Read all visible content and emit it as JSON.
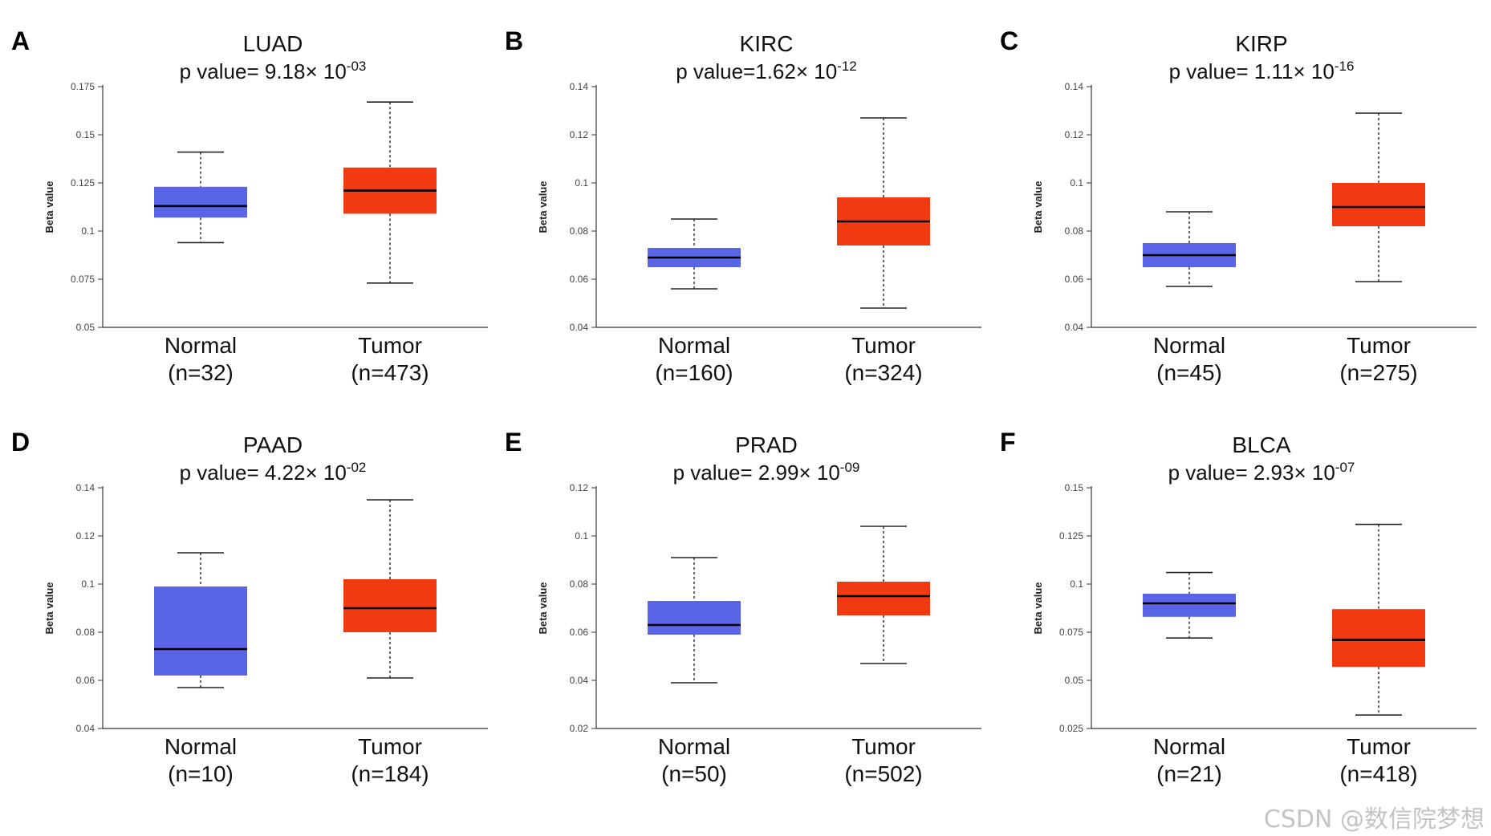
{
  "watermark": "CSDN @数信院梦想",
  "colors": {
    "normal": "#5a64e6",
    "tumor": "#f23a12",
    "axis": "#333333",
    "median": "#000000"
  },
  "chart_data": [
    {
      "panel": "A",
      "type": "box",
      "title": "LUAD",
      "p_value_prefix": "p value= 9.18× 10",
      "p_value_exponent": "-03",
      "ylabel": "Beta value",
      "ylim": [
        0.05,
        0.175
      ],
      "yticks": [
        "0.05",
        "0.075",
        "0.1",
        "0.125",
        "0.15",
        "0.175"
      ],
      "ytick_values": [
        0.05,
        0.075,
        0.1,
        0.125,
        0.15,
        0.175
      ],
      "groups": [
        {
          "name": "Normal",
          "n_label": "(n=32)",
          "min": 0.094,
          "q1": 0.107,
          "median": 0.113,
          "q3": 0.123,
          "max": 0.141
        },
        {
          "name": "Tumor",
          "n_label": "(n=473)",
          "min": 0.073,
          "q1": 0.109,
          "median": 0.121,
          "q3": 0.133,
          "max": 0.167
        }
      ]
    },
    {
      "panel": "B",
      "type": "box",
      "title": "KIRC",
      "p_value_prefix": "p value=1.62× 10",
      "p_value_exponent": "-12",
      "ylabel": "Beta value",
      "ylim": [
        0.04,
        0.14
      ],
      "yticks": [
        "0.04",
        "0.06",
        "0.08",
        "0.1",
        "0.12",
        "0.14"
      ],
      "ytick_values": [
        0.04,
        0.06,
        0.08,
        0.1,
        0.12,
        0.14
      ],
      "groups": [
        {
          "name": "Normal",
          "n_label": "(n=160)",
          "min": 0.056,
          "q1": 0.065,
          "median": 0.069,
          "q3": 0.073,
          "max": 0.085
        },
        {
          "name": "Tumor",
          "n_label": "(n=324)",
          "min": 0.048,
          "q1": 0.074,
          "median": 0.084,
          "q3": 0.094,
          "max": 0.127
        }
      ]
    },
    {
      "panel": "C",
      "type": "box",
      "title": "KIRP",
      "p_value_prefix": "p value= 1.11× 10",
      "p_value_exponent": "-16",
      "ylabel": "Beta value",
      "ylim": [
        0.04,
        0.14
      ],
      "yticks": [
        "0.04",
        "0.06",
        "0.08",
        "0.1",
        "0.12",
        "0.14"
      ],
      "ytick_values": [
        0.04,
        0.06,
        0.08,
        0.1,
        0.12,
        0.14
      ],
      "groups": [
        {
          "name": "Normal",
          "n_label": "(n=45)",
          "min": 0.057,
          "q1": 0.065,
          "median": 0.07,
          "q3": 0.075,
          "max": 0.088
        },
        {
          "name": "Tumor",
          "n_label": "(n=275)",
          "min": 0.059,
          "q1": 0.082,
          "median": 0.09,
          "q3": 0.1,
          "max": 0.129
        }
      ]
    },
    {
      "panel": "D",
      "type": "box",
      "title": "PAAD",
      "p_value_prefix": "p value= 4.22× 10",
      "p_value_exponent": "-02",
      "ylabel": "Beta value",
      "ylim": [
        0.04,
        0.14
      ],
      "yticks": [
        "0.04",
        "0.06",
        "0.08",
        "0.1",
        "0.12",
        "0.14"
      ],
      "ytick_values": [
        0.04,
        0.06,
        0.08,
        0.1,
        0.12,
        0.14
      ],
      "groups": [
        {
          "name": "Normal",
          "n_label": "(n=10)",
          "min": 0.057,
          "q1": 0.062,
          "median": 0.073,
          "q3": 0.099,
          "max": 0.113
        },
        {
          "name": "Tumor",
          "n_label": "(n=184)",
          "min": 0.061,
          "q1": 0.08,
          "median": 0.09,
          "q3": 0.102,
          "max": 0.135
        }
      ]
    },
    {
      "panel": "E",
      "type": "box",
      "title": "PRAD",
      "p_value_prefix": "p value= 2.99× 10",
      "p_value_exponent": "-09",
      "ylabel": "Beta value",
      "ylim": [
        0.02,
        0.12
      ],
      "yticks": [
        "0.02",
        "0.04",
        "0.06",
        "0.08",
        "0.1",
        "0.12"
      ],
      "ytick_values": [
        0.02,
        0.04,
        0.06,
        0.08,
        0.1,
        0.12
      ],
      "groups": [
        {
          "name": "Normal",
          "n_label": "(n=50)",
          "min": 0.039,
          "q1": 0.059,
          "median": 0.063,
          "q3": 0.073,
          "max": 0.091
        },
        {
          "name": "Tumor",
          "n_label": "(n=502)",
          "min": 0.047,
          "q1": 0.067,
          "median": 0.075,
          "q3": 0.081,
          "max": 0.104
        }
      ]
    },
    {
      "panel": "F",
      "type": "box",
      "title": "BLCA",
      "p_value_prefix": "p value= 2.93× 10",
      "p_value_exponent": "-07",
      "ylabel": "Beta value",
      "ylim": [
        0.025,
        0.15
      ],
      "yticks": [
        "0.025",
        "0.05",
        "0.075",
        "0.1",
        "0.125",
        "0.15"
      ],
      "ytick_values": [
        0.025,
        0.05,
        0.075,
        0.1,
        0.125,
        0.15
      ],
      "groups": [
        {
          "name": "Normal",
          "n_label": "(n=21)",
          "min": 0.072,
          "q1": 0.083,
          "median": 0.09,
          "q3": 0.095,
          "max": 0.106
        },
        {
          "name": "Tumor",
          "n_label": "(n=418)",
          "min": 0.032,
          "q1": 0.057,
          "median": 0.071,
          "q3": 0.087,
          "max": 0.131
        }
      ]
    }
  ]
}
